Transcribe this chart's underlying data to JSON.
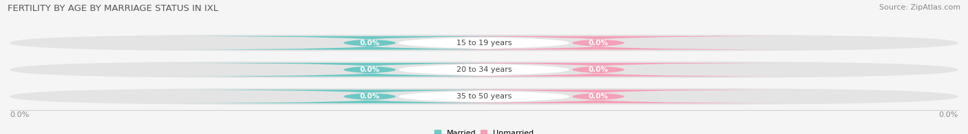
{
  "title": "FERTILITY BY AGE BY MARRIAGE STATUS IN IXL",
  "source": "Source: ZipAtlas.com",
  "categories": [
    "15 to 19 years",
    "20 to 34 years",
    "35 to 50 years"
  ],
  "married_values": [
    "0.0%",
    "0.0%",
    "0.0%"
  ],
  "unmarried_values": [
    "0.0%",
    "0.0%",
    "0.0%"
  ],
  "bar_color": "#e4e4e4",
  "center_pill_color": "#ffffff",
  "married_color": "#6dc8c4",
  "unmarried_color": "#f5a0b8",
  "title_fontsize": 9.5,
  "source_fontsize": 8,
  "label_fontsize": 8,
  "badge_fontsize": 7.5,
  "cat_fontsize": 8,
  "bg_color": "#f5f5f5",
  "bar_height": 0.62,
  "x_left_label": "0.0%",
  "x_right_label": "0.0%"
}
